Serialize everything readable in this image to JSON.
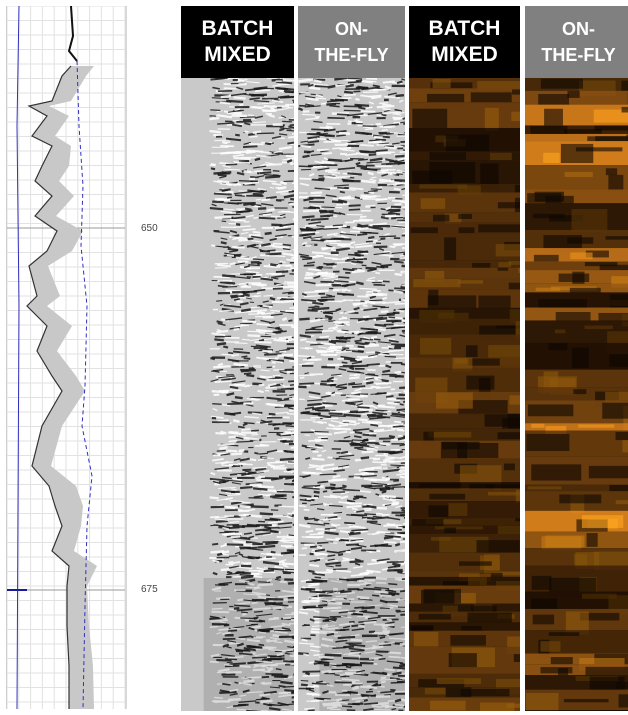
{
  "depth_scale": {
    "labels": [
      "650",
      "675"
    ]
  },
  "panels": [
    {
      "id": "bw-batch",
      "title_lines": [
        "BATCH",
        "MIXED"
      ],
      "style": "grayscale"
    },
    {
      "id": "bw-fly",
      "title_lines": [
        "ON-",
        "THE-FLY"
      ],
      "style": "grayscale"
    },
    {
      "id": "cl-batch",
      "title_lines": [
        "BATCH",
        "MIXED"
      ],
      "style": "amber"
    },
    {
      "id": "cl-fly",
      "title_lines": [
        "ON-",
        "THE-FLY"
      ],
      "style": "amber"
    }
  ],
  "colors": {
    "header_dark": "#000000",
    "header_grey": "#808080",
    "log_curve": "#333333",
    "log_fill": "#c8c8c8",
    "log_dashed": "#3030c0",
    "amber_dark": "#1c0d02",
    "amber_bright": "#f09020"
  }
}
